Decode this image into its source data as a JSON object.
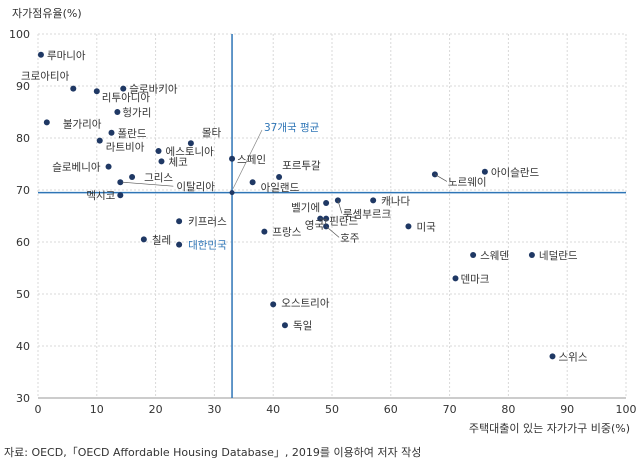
{
  "chart_data": {
    "type": "scatter",
    "ylabel": "자가점유율(%)",
    "xlabel": "주택대출이 있는 자가가구 비중(%)",
    "xlim": [
      0,
      100
    ],
    "ylim": [
      30,
      100
    ],
    "xticks": [
      0,
      10,
      20,
      30,
      40,
      50,
      60,
      70,
      80,
      90,
      100
    ],
    "yticks": [
      30,
      40,
      50,
      60,
      70,
      80,
      90,
      100
    ],
    "grid": true,
    "average": {
      "label": "37개국 평균",
      "x": 33,
      "y": 69.5
    },
    "points": [
      {
        "label": "루마니아",
        "x": 0.5,
        "y": 96
      },
      {
        "label": "크로아티아",
        "x": 6,
        "y": 89.5
      },
      {
        "label": "리투아니아",
        "x": 10,
        "y": 89
      },
      {
        "label": "슬로바키아",
        "x": 14.5,
        "y": 89.5
      },
      {
        "label": "헝가리",
        "x": 13.5,
        "y": 85
      },
      {
        "label": "불가리아",
        "x": 1.5,
        "y": 83
      },
      {
        "label": "폴란드",
        "x": 12.5,
        "y": 81
      },
      {
        "label": "라트비아",
        "x": 10.5,
        "y": 79.5
      },
      {
        "label": "몰타",
        "x": 26,
        "y": 79
      },
      {
        "label": "에스토니아",
        "x": 20.5,
        "y": 77.5
      },
      {
        "label": "체코",
        "x": 21,
        "y": 75.5
      },
      {
        "label": "스페인",
        "x": 33,
        "y": 76
      },
      {
        "label": "슬로베니아",
        "x": 12,
        "y": 74.5
      },
      {
        "label": "포르투갈",
        "x": 41,
        "y": 72.5
      },
      {
        "label": "그리스",
        "x": 16,
        "y": 72.5
      },
      {
        "label": "이탈리아",
        "x": 14,
        "y": 71.5
      },
      {
        "label": "아일랜드",
        "x": 36.5,
        "y": 71.5
      },
      {
        "label": "멕시코",
        "x": 14,
        "y": 69
      },
      {
        "label": "노르웨이",
        "x": 67.5,
        "y": 73
      },
      {
        "label": "아이슬란드",
        "x": 76,
        "y": 73.5
      },
      {
        "label": "벨기에",
        "x": 49,
        "y": 67.5
      },
      {
        "label": "캐나다",
        "x": 57,
        "y": 68
      },
      {
        "label": "룩셈부르크",
        "x": 51,
        "y": 68
      },
      {
        "label": "핀란드",
        "x": 48,
        "y": 64.5
      },
      {
        "label": "영국",
        "x": 49,
        "y": 64.5
      },
      {
        "label": "호주",
        "x": 49,
        "y": 63
      },
      {
        "label": "미국",
        "x": 63,
        "y": 63
      },
      {
        "label": "키프러스",
        "x": 24,
        "y": 64
      },
      {
        "label": "프랑스",
        "x": 38.5,
        "y": 62
      },
      {
        "label": "칠레",
        "x": 18,
        "y": 60.5
      },
      {
        "label": "대한민국",
        "x": 24,
        "y": 59.5,
        "highlight": true
      },
      {
        "label": "스웨덴",
        "x": 74,
        "y": 57.5
      },
      {
        "label": "네덜란드",
        "x": 84,
        "y": 57.5
      },
      {
        "label": "덴마크",
        "x": 71,
        "y": 53
      },
      {
        "label": "오스트리아",
        "x": 40,
        "y": 48
      },
      {
        "label": "독일",
        "x": 42,
        "y": 44
      },
      {
        "label": "스위스",
        "x": 87.5,
        "y": 38
      }
    ]
  },
  "source_note": "자료: OECD,「OECD Affordable Housing Database」, 2019를 이용하여 저자 작성",
  "colors": {
    "point": "#1f3864",
    "average_line": "#2e75b6",
    "highlight": "#2e75b6",
    "grid": "#d9d9d9",
    "text": "#333333"
  }
}
